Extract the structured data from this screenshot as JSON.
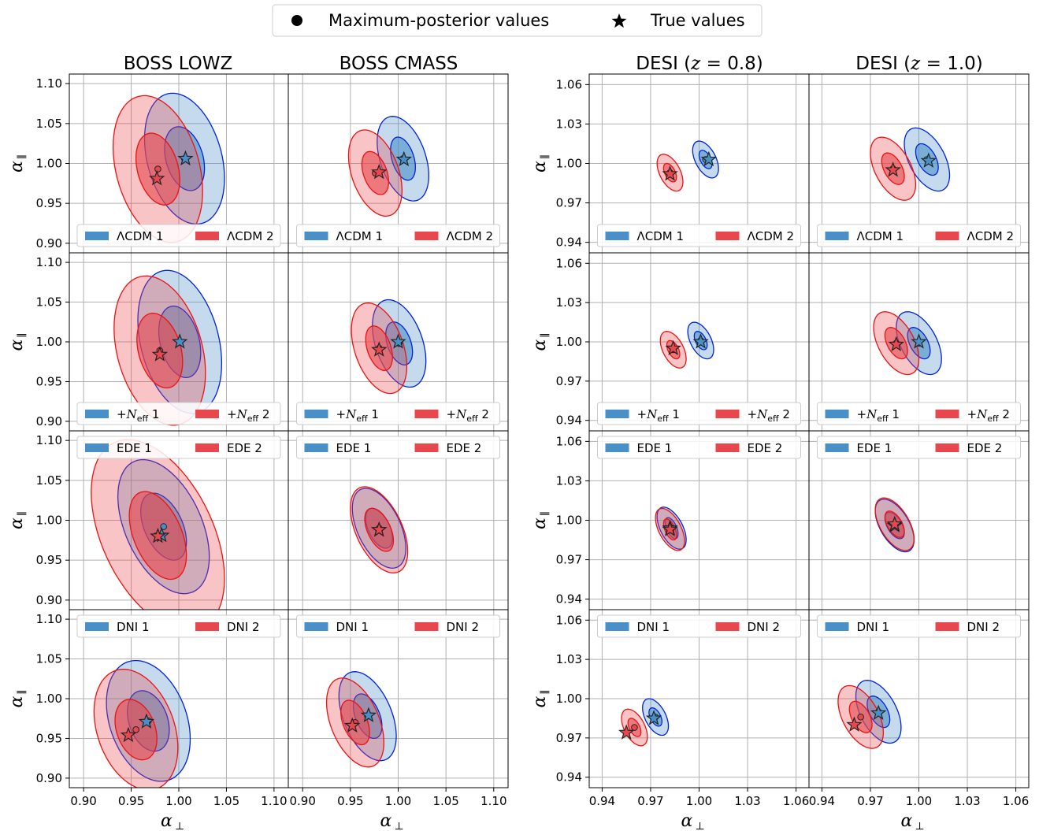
{
  "legend": {
    "items": [
      {
        "marker": "circle",
        "label": "Maximum-posterior values"
      },
      {
        "marker": "star",
        "label": "True values"
      }
    ]
  },
  "colors": {
    "blue_fill": "#4a90c8",
    "blue_line": "#0022dd",
    "red_fill": "#e8474d",
    "red_line": "#ee1111",
    "grid": "#b0b0b0"
  },
  "columns": [
    {
      "title": "BOSS LOWZ"
    },
    {
      "title": "BOSS CMASS"
    },
    {
      "title_prefix": "DESI (",
      "title_var": "z",
      "title_suffix": " = 0.8)"
    },
    {
      "title_prefix": "DESI (",
      "title_var": "z",
      "title_suffix": " = 1.0)"
    }
  ],
  "xlabel": {
    "symbol": "α",
    "subscript": "⊥"
  },
  "ylabel": {
    "symbol": "α",
    "subscript": "∥"
  },
  "chart_data": {
    "type": "contour",
    "rows": [
      {
        "model": "ΛCDM",
        "legend": [
          "ΛCDM 1",
          "ΛCDM 2"
        ],
        "legend_pos": "lower-center"
      },
      {
        "model": "+Neff",
        "legend": [
          "+N",
          "+N"
        ],
        "legend_sub": "eff",
        "legend_suffix": [
          " 1",
          " 2"
        ],
        "legend_pos": "lower-center"
      },
      {
        "model": "EDE",
        "legend": [
          "EDE 1",
          "EDE 2"
        ],
        "legend_pos": "upper-center"
      },
      {
        "model": "DNI",
        "legend": [
          "DNI 1",
          "DNI 2"
        ],
        "legend_pos": "upper-center"
      }
    ],
    "boss_axes": {
      "xlim": [
        0.885,
        1.115
      ],
      "ylim": [
        0.888,
        1.112
      ],
      "xticks": [
        "0.90",
        "0.95",
        "1.00",
        "1.05",
        "1.10"
      ],
      "xtick_values": [
        0.9,
        0.95,
        1.0,
        1.05,
        1.1
      ],
      "yticks": [
        "0.90",
        "0.95",
        "1.00",
        "1.05",
        "1.10"
      ],
      "ytick_values": [
        0.9,
        0.95,
        1.0,
        1.05,
        1.1
      ]
    },
    "desi_axes": {
      "xlim": [
        0.932,
        1.068
      ],
      "ylim": [
        0.932,
        1.068
      ],
      "xticks": [
        "0.94",
        "0.97",
        "1.00",
        "1.03",
        "1.06"
      ],
      "xtick_values": [
        0.94,
        0.97,
        1.0,
        1.03,
        1.06
      ],
      "yticks": [
        "0.94",
        "0.97",
        "1.00",
        "1.03",
        "1.06"
      ],
      "ytick_values": [
        0.94,
        0.97,
        1.0,
        1.03,
        1.06
      ]
    },
    "panels": [
      {
        "row": 0,
        "col": 0,
        "m1": {
          "best": [
            1.006,
            1.006
          ],
          "truth": [
            1.007,
            1.006
          ],
          "s1": [
            0.021,
            0.04
          ],
          "s2": [
            0.042,
            0.082
          ],
          "rho": -0.3
        },
        "m2": {
          "best": [
            0.978,
            0.993
          ],
          "truth": [
            0.977,
            0.981
          ],
          "s1": [
            0.023,
            0.045
          ],
          "s2": [
            0.047,
            0.092
          ],
          "rho": -0.3
        }
      },
      {
        "row": 0,
        "col": 1,
        "m1": {
          "best": [
            1.005,
            1.006
          ],
          "truth": [
            1.006,
            1.005
          ],
          "s1": [
            0.013,
            0.027
          ],
          "s2": [
            0.027,
            0.053
          ],
          "rho": -0.4
        },
        "m2": {
          "best": [
            0.976,
            0.988
          ],
          "truth": [
            0.98,
            0.989
          ],
          "s1": [
            0.014,
            0.027
          ],
          "s2": [
            0.028,
            0.054
          ],
          "rho": -0.4
        }
      },
      {
        "row": 0,
        "col": 2,
        "m1": {
          "best": [
            1.004,
            1.003
          ],
          "truth": [
            1.006,
            1.003
          ],
          "s1": [
            0.004,
            0.007
          ],
          "s2": [
            0.008,
            0.014
          ],
          "rho": -0.5
        },
        "m2": {
          "best": [
            0.982,
            0.993
          ],
          "truth": [
            0.982,
            0.992
          ],
          "s1": [
            0.004,
            0.007
          ],
          "s2": [
            0.008,
            0.014
          ],
          "rho": -0.5
        }
      },
      {
        "row": 0,
        "col": 3,
        "m1": {
          "best": [
            1.005,
            1.003
          ],
          "truth": [
            1.006,
            1.002
          ],
          "s1": [
            0.007,
            0.012
          ],
          "s2": [
            0.014,
            0.024
          ],
          "rho": -0.5
        },
        "m2": {
          "best": [
            0.984,
            0.996
          ],
          "truth": [
            0.984,
            0.995
          ],
          "s1": [
            0.007,
            0.012
          ],
          "s2": [
            0.014,
            0.024
          ],
          "rho": -0.5
        }
      },
      {
        "row": 1,
        "col": 0,
        "m1": {
          "best": [
            1.001,
            1.0
          ],
          "truth": [
            1.001,
            1.0
          ],
          "s1": [
            0.022,
            0.045
          ],
          "s2": [
            0.044,
            0.09
          ],
          "rho": -0.3
        },
        "m2": {
          "best": [
            0.98,
            0.989
          ],
          "truth": [
            0.98,
            0.984
          ],
          "s1": [
            0.024,
            0.047
          ],
          "s2": [
            0.048,
            0.094
          ],
          "rho": -0.3
        }
      },
      {
        "row": 1,
        "col": 1,
        "m1": {
          "best": [
            1.001,
            0.998
          ],
          "truth": [
            1.0,
            1.0
          ],
          "s1": [
            0.014,
            0.027
          ],
          "s2": [
            0.028,
            0.055
          ],
          "rho": -0.4
        },
        "m2": {
          "best": [
            0.98,
            0.992
          ],
          "truth": [
            0.98,
            0.99
          ],
          "s1": [
            0.014,
            0.028
          ],
          "s2": [
            0.029,
            0.057
          ],
          "rho": -0.4
        }
      },
      {
        "row": 1,
        "col": 2,
        "m1": {
          "best": [
            1.001,
            1.001
          ],
          "truth": [
            1.001,
            1.0
          ],
          "s1": [
            0.004,
            0.007
          ],
          "s2": [
            0.008,
            0.014
          ],
          "rho": -0.5
        },
        "m2": {
          "best": [
            0.984,
            0.994
          ],
          "truth": [
            0.984,
            0.995
          ],
          "s1": [
            0.004,
            0.007
          ],
          "s2": [
            0.008,
            0.014
          ],
          "rho": -0.5
        }
      },
      {
        "row": 1,
        "col": 3,
        "m1": {
          "best": [
            1.0,
            0.999
          ],
          "truth": [
            1.0,
            1.0
          ],
          "s1": [
            0.007,
            0.012
          ],
          "s2": [
            0.014,
            0.024
          ],
          "rho": -0.5
        },
        "m2": {
          "best": [
            0.986,
            0.999
          ],
          "truth": [
            0.986,
            0.998
          ],
          "s1": [
            0.007,
            0.012
          ],
          "s2": [
            0.014,
            0.024
          ],
          "rho": -0.5
        }
      },
      {
        "row": 2,
        "col": 0,
        "m1": {
          "best": [
            0.984,
            0.992
          ],
          "truth": [
            0.982,
            0.981
          ],
          "s1": [
            0.024,
            0.042
          ],
          "s2": [
            0.048,
            0.084
          ],
          "rho": -0.45
        },
        "m2": {
          "best": [
            0.978,
            0.981
          ],
          "truth": [
            0.978,
            0.98
          ],
          "s1": [
            0.03,
            0.055
          ],
          "s2": [
            0.07,
            0.12
          ],
          "rho": -0.45
        }
      },
      {
        "row": 2,
        "col": 1,
        "m1": {
          "best": [
            0.98,
            0.99
          ],
          "truth": [
            0.98,
            0.988
          ],
          "s1": [
            0.014,
            0.025
          ],
          "s2": [
            0.028,
            0.05
          ],
          "rho": -0.5
        },
        "m2": {
          "best": [
            0.98,
            0.988
          ],
          "truth": [
            0.98,
            0.988
          ],
          "s1": [
            0.015,
            0.027
          ],
          "s2": [
            0.03,
            0.054
          ],
          "rho": -0.5
        }
      },
      {
        "row": 2,
        "col": 2,
        "m1": {
          "best": [
            0.983,
            0.994
          ],
          "truth": [
            0.982,
            0.994
          ],
          "s1": [
            0.004,
            0.008
          ],
          "s2": [
            0.009,
            0.016
          ],
          "rho": -0.55
        },
        "m2": {
          "best": [
            0.982,
            0.993
          ],
          "truth": [
            0.982,
            0.993
          ],
          "s1": [
            0.004,
            0.008
          ],
          "s2": [
            0.009,
            0.016
          ],
          "rho": -0.55
        }
      },
      {
        "row": 2,
        "col": 3,
        "m1": {
          "best": [
            0.985,
            0.996
          ],
          "truth": [
            0.985,
            0.996
          ],
          "s1": [
            0.006,
            0.01
          ],
          "s2": [
            0.012,
            0.02
          ],
          "rho": -0.55
        },
        "m2": {
          "best": [
            0.985,
            0.997
          ],
          "truth": [
            0.985,
            0.997
          ],
          "s1": [
            0.006,
            0.01
          ],
          "s2": [
            0.012,
            0.02
          ],
          "rho": -0.55
        }
      },
      {
        "row": 3,
        "col": 0,
        "m1": {
          "best": [
            0.968,
            0.972
          ],
          "truth": [
            0.966,
            0.971
          ],
          "s1": [
            0.022,
            0.038
          ],
          "s2": [
            0.044,
            0.076
          ],
          "rho": -0.3
        },
        "m2": {
          "best": [
            0.955,
            0.961
          ],
          "truth": [
            0.947,
            0.954
          ],
          "s1": [
            0.022,
            0.038
          ],
          "s2": [
            0.044,
            0.076
          ],
          "rho": -0.3
        }
      },
      {
        "row": 3,
        "col": 1,
        "m1": {
          "best": [
            0.968,
            0.978
          ],
          "truth": [
            0.969,
            0.979
          ],
          "s1": [
            0.015,
            0.028
          ],
          "s2": [
            0.03,
            0.056
          ],
          "rho": -0.45
        },
        "m2": {
          "best": [
            0.955,
            0.97
          ],
          "truth": [
            0.952,
            0.966
          ],
          "s1": [
            0.015,
            0.028
          ],
          "s2": [
            0.03,
            0.056
          ],
          "rho": -0.45
        }
      },
      {
        "row": 3,
        "col": 2,
        "m1": {
          "best": [
            0.973,
            0.986
          ],
          "truth": [
            0.972,
            0.985
          ],
          "s1": [
            0.004,
            0.007
          ],
          "s2": [
            0.008,
            0.014
          ],
          "rho": -0.5
        },
        "m2": {
          "best": [
            0.96,
            0.978
          ],
          "truth": [
            0.955,
            0.974
          ],
          "s1": [
            0.004,
            0.007
          ],
          "s2": [
            0.008,
            0.014
          ],
          "rho": -0.5
        }
      },
      {
        "row": 3,
        "col": 3,
        "m1": {
          "best": [
            0.975,
            0.99
          ],
          "truth": [
            0.975,
            0.989
          ],
          "s1": [
            0.007,
            0.012
          ],
          "s2": [
            0.014,
            0.024
          ],
          "rho": -0.5
        },
        "m2": {
          "best": [
            0.964,
            0.986
          ],
          "truth": [
            0.96,
            0.98
          ],
          "s1": [
            0.007,
            0.012
          ],
          "s2": [
            0.014,
            0.024
          ],
          "rho": -0.5
        }
      }
    ]
  }
}
